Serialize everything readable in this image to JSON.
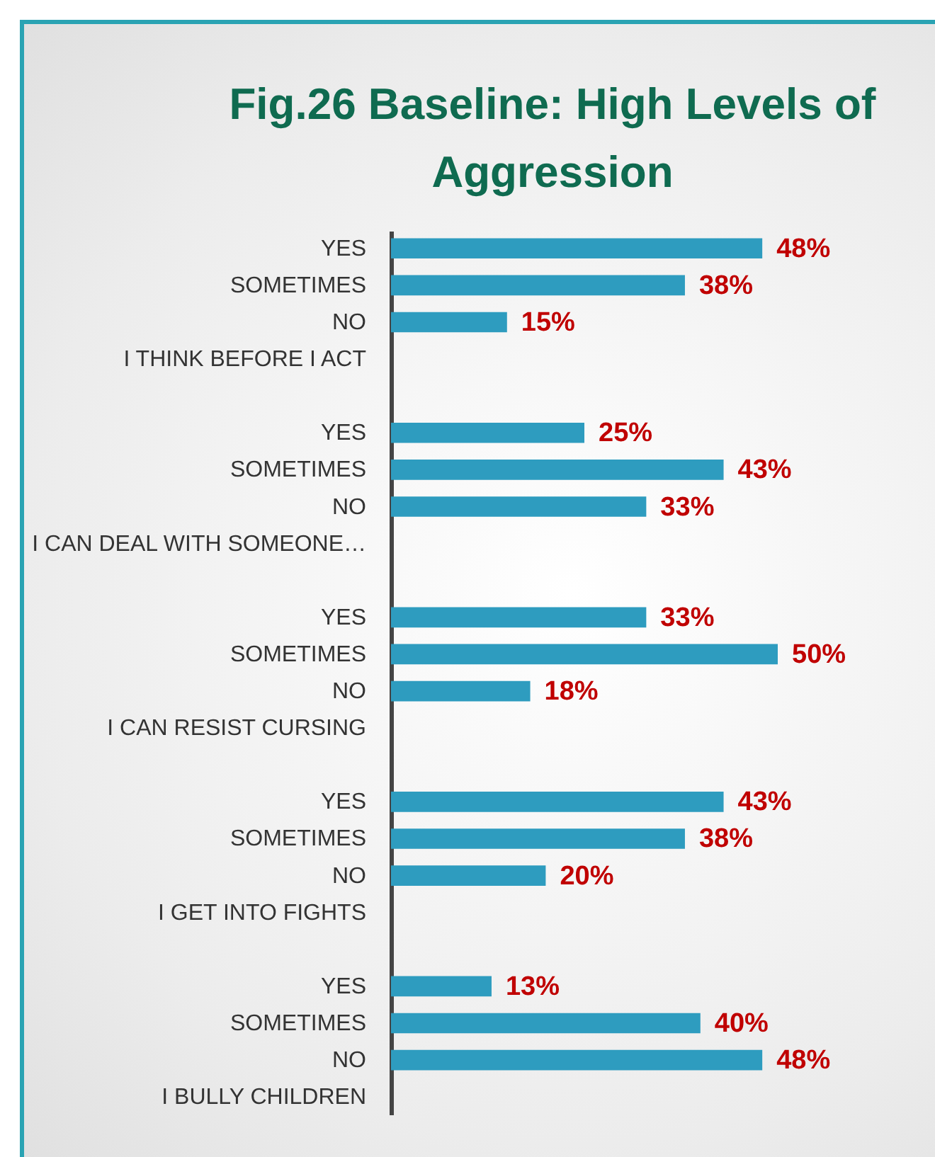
{
  "chart_data": {
    "type": "bar",
    "orientation": "horizontal",
    "title": "Fig.26 Baseline: High Levels of Aggression",
    "categories": [
      "YES",
      "SOMETIMES",
      "NO",
      "I THINK BEFORE I ACT",
      null,
      "YES",
      "SOMETIMES",
      "NO",
      "I CAN DEAL WITH SOMEONE…",
      null,
      "YES",
      "SOMETIMES",
      "NO",
      "I CAN RESIST CURSING",
      null,
      "YES",
      "SOMETIMES",
      "NO",
      "I GET INTO FIGHTS",
      null,
      "YES",
      "SOMETIMES",
      "NO",
      "I BULLY CHILDREN"
    ],
    "values": [
      48,
      38,
      15,
      null,
      null,
      25,
      43,
      33,
      null,
      null,
      33,
      50,
      18,
      null,
      null,
      43,
      38,
      20,
      null,
      null,
      13,
      40,
      48,
      null
    ],
    "value_labels": [
      "48%",
      "38%",
      "15%",
      null,
      null,
      "25%",
      "43%",
      "33%",
      null,
      null,
      "33%",
      "50%",
      "18%",
      null,
      null,
      "43%",
      "38%",
      "20%",
      null,
      null,
      "13%",
      "40%",
      "48%",
      null
    ],
    "color": "#2e9cbf"
  }
}
